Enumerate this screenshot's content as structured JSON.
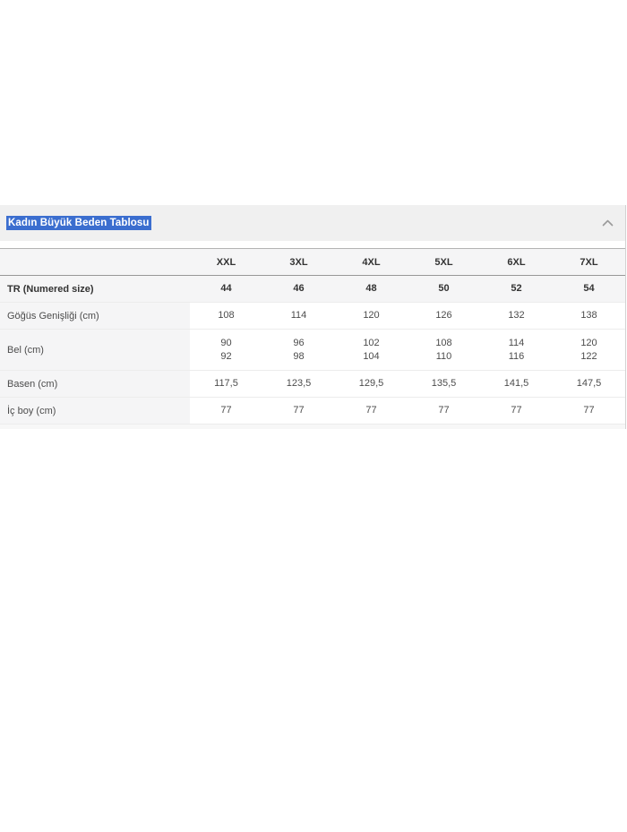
{
  "accordion": {
    "title": "Kadın Büyük Beden Tablosu",
    "title_highlight_color": "#3b6ecf",
    "title_text_color": "#ffffff",
    "header_bg": "#f0f0f0",
    "chevron_icon": "chevron-up",
    "chevron_color": "#9a9a9a"
  },
  "size_table": {
    "shaded_bg": "#f5f5f6",
    "columns": [
      "XXL",
      "3XL",
      "4XL",
      "5XL",
      "6XL",
      "7XL"
    ],
    "rows": [
      {
        "label": "TR (Numered size)",
        "values": [
          [
            "44"
          ],
          [
            "46"
          ],
          [
            "48"
          ],
          [
            "50"
          ],
          [
            "52"
          ],
          [
            "54"
          ]
        ],
        "bold": true,
        "shaded": true
      },
      {
        "label": "Göğüs Genişliği (cm)",
        "values": [
          [
            "108"
          ],
          [
            "114"
          ],
          [
            "120"
          ],
          [
            "126"
          ],
          [
            "132"
          ],
          [
            "138"
          ]
        ],
        "bold": false,
        "shaded": false
      },
      {
        "label": "Bel (cm)",
        "values": [
          [
            "90",
            "92"
          ],
          [
            "96",
            "98"
          ],
          [
            "102",
            "104"
          ],
          [
            "108",
            "110"
          ],
          [
            "114",
            "116"
          ],
          [
            "120",
            "122"
          ]
        ],
        "bold": false,
        "shaded": false
      },
      {
        "label": "Basen (cm)",
        "values": [
          [
            "117,5"
          ],
          [
            "123,5"
          ],
          [
            "129,5"
          ],
          [
            "135,5"
          ],
          [
            "141,5"
          ],
          [
            "147,5"
          ]
        ],
        "bold": false,
        "shaded": false
      },
      {
        "label": "İç boy (cm)",
        "values": [
          [
            "77"
          ],
          [
            "77"
          ],
          [
            "77"
          ],
          [
            "77"
          ],
          [
            "77"
          ],
          [
            "77"
          ]
        ],
        "bold": false,
        "shaded": false
      }
    ]
  }
}
